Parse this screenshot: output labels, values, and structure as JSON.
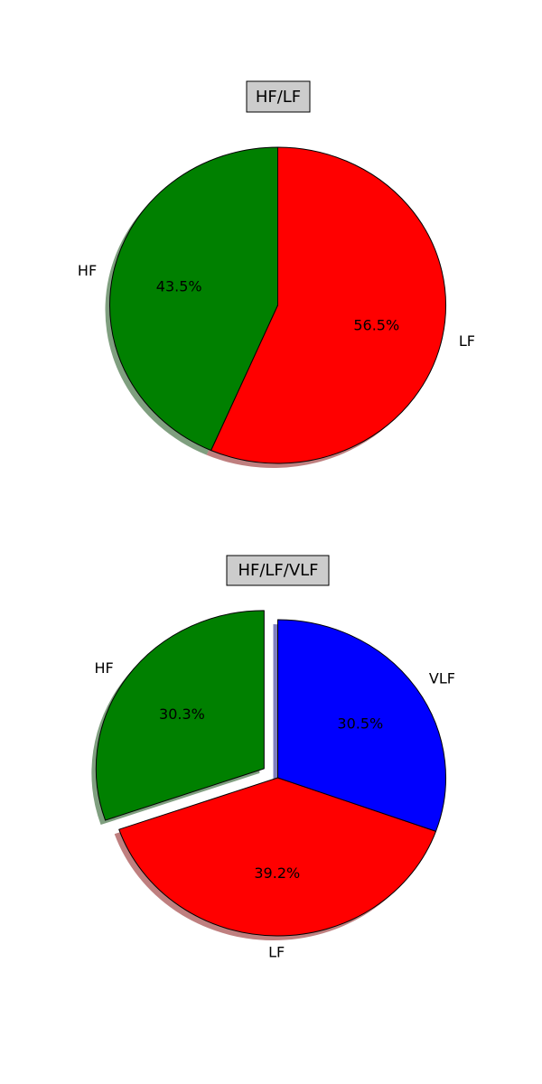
{
  "chart_data": [
    {
      "type": "pie",
      "title": "HF/LF",
      "start_angle_deg": 90,
      "direction": "counterclockwise",
      "shadow": true,
      "slices": [
        {
          "label": "HF",
          "value": 43.5,
          "pct_label": "43.5%",
          "color": "#008000",
          "explode": 0
        },
        {
          "label": "LF",
          "value": 56.5,
          "pct_label": "56.5%",
          "color": "#ff0000",
          "explode": 0
        }
      ]
    },
    {
      "type": "pie",
      "title": "HF/LF/VLF",
      "start_angle_deg": 90,
      "direction": "counterclockwise",
      "shadow": true,
      "slices": [
        {
          "label": "HF",
          "value": 30.3,
          "pct_label": "30.3%",
          "color": "#008000",
          "explode": 0.1
        },
        {
          "label": "LF",
          "value": 39.2,
          "pct_label": "39.2%",
          "color": "#ff0000",
          "explode": 0
        },
        {
          "label": "VLF",
          "value": 30.5,
          "pct_label": "30.5%",
          "color": "#0000ff",
          "explode": 0
        }
      ]
    }
  ]
}
